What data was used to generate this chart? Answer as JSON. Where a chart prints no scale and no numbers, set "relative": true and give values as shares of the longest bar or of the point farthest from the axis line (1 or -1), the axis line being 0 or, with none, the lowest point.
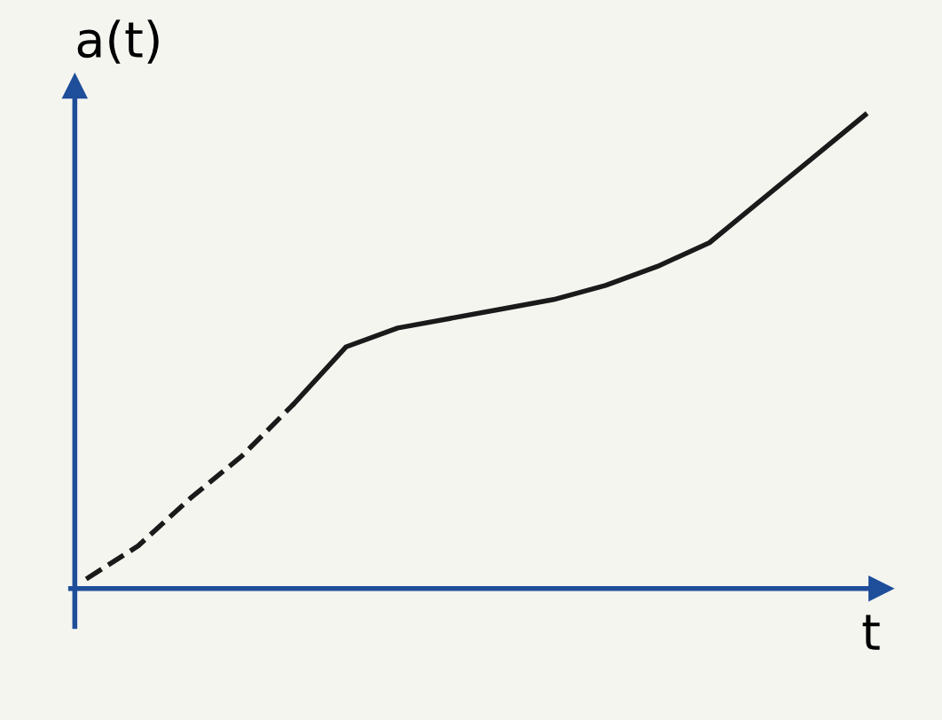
{
  "chart_data": {
    "type": "line",
    "xlabel": "t",
    "ylabel": "a(t)",
    "relative": true,
    "categories": [
      null,
      null,
      null,
      null,
      null,
      null,
      null,
      null,
      null,
      null,
      null,
      null,
      null,
      null,
      null,
      null
    ],
    "series": [
      {
        "color": "#1a1a1a",
        "line_style": "dashed",
        "values": [
          0.02,
          0.09,
          0.19,
          0.28,
          0.39,
          null,
          null,
          null,
          null,
          null,
          null,
          null,
          null,
          null,
          null,
          null
        ]
      },
      {
        "color": "#1a1a1a",
        "line_style": "solid",
        "values": [
          null,
          null,
          null,
          null,
          0.39,
          0.51,
          0.55,
          0.57,
          0.59,
          0.61,
          0.64,
          0.68,
          0.73,
          0.82,
          0.91,
          1.0
        ]
      }
    ]
  }
}
